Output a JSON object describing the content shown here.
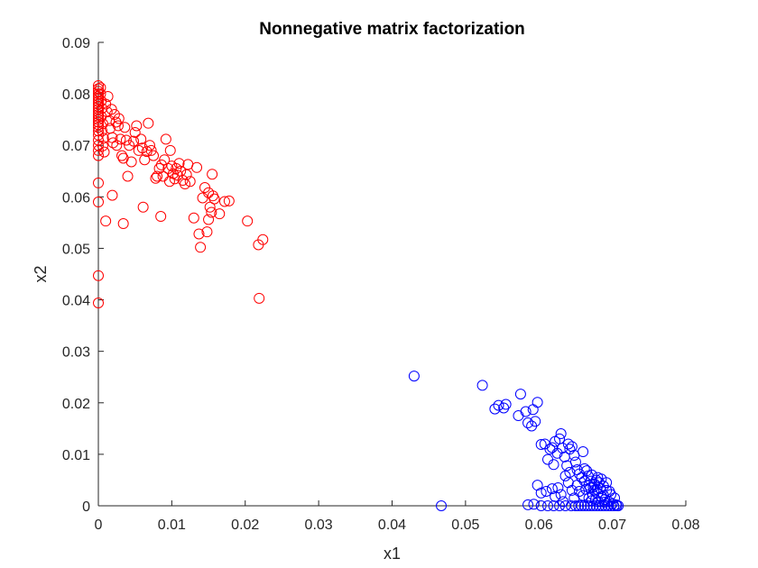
{
  "chart_data": {
    "type": "scatter",
    "title": "Nonnegative matrix factorization",
    "xlabel": "x1",
    "ylabel": "x2",
    "xlim": [
      0,
      0.08
    ],
    "ylim": [
      0,
      0.09
    ],
    "xticks": [
      "0",
      "0.01",
      "0.02",
      "0.03",
      "0.04",
      "0.05",
      "0.06",
      "0.07",
      "0.08"
    ],
    "yticks": [
      "0",
      "0.01",
      "0.02",
      "0.03",
      "0.04",
      "0.05",
      "0.06",
      "0.07",
      "0.08",
      "0.09"
    ],
    "grid": false,
    "legend": "none",
    "series": [
      {
        "color": "#ff0000",
        "marker": "open-circle",
        "points": [
          [
            0.0,
            0.0816
          ],
          [
            0.0,
            0.081
          ],
          [
            0.0,
            0.0805
          ],
          [
            0.0,
            0.08
          ],
          [
            0.0,
            0.0795
          ],
          [
            0.0,
            0.079
          ],
          [
            0.0,
            0.0785
          ],
          [
            0.0,
            0.078
          ],
          [
            0.0,
            0.0775
          ],
          [
            0.0,
            0.077
          ],
          [
            0.0,
            0.0765
          ],
          [
            0.0,
            0.076
          ],
          [
            0.0,
            0.0755
          ],
          [
            0.0,
            0.075
          ],
          [
            0.0,
            0.0745
          ],
          [
            0.0,
            0.074
          ],
          [
            0.0,
            0.0735
          ],
          [
            0.0,
            0.0728
          ],
          [
            0.0,
            0.072
          ],
          [
            0.0,
            0.071
          ],
          [
            0.0,
            0.07
          ],
          [
            0.0,
            0.069
          ],
          [
            0.0,
            0.068
          ],
          [
            0.0,
            0.0627
          ],
          [
            0.0,
            0.059
          ],
          [
            0.0,
            0.0447
          ],
          [
            0.0,
            0.0394
          ],
          [
            0.0003,
            0.0812
          ],
          [
            0.0003,
            0.08
          ],
          [
            0.0004,
            0.0786
          ],
          [
            0.0005,
            0.0772
          ],
          [
            0.0004,
            0.0756
          ],
          [
            0.0006,
            0.0742
          ],
          [
            0.0005,
            0.0728
          ],
          [
            0.0007,
            0.0714
          ],
          [
            0.0006,
            0.0699
          ],
          [
            0.0008,
            0.0687
          ],
          [
            0.001,
            0.078
          ],
          [
            0.0012,
            0.0765
          ],
          [
            0.0013,
            0.0795
          ],
          [
            0.0015,
            0.0748
          ],
          [
            0.0016,
            0.0733
          ],
          [
            0.0018,
            0.077
          ],
          [
            0.0019,
            0.0715
          ],
          [
            0.002,
            0.0705
          ],
          [
            0.0022,
            0.076
          ],
          [
            0.0024,
            0.0745
          ],
          [
            0.0025,
            0.07
          ],
          [
            0.0027,
            0.0738
          ],
          [
            0.0028,
            0.0752
          ],
          [
            0.003,
            0.0712
          ],
          [
            0.0032,
            0.068
          ],
          [
            0.0034,
            0.0675
          ],
          [
            0.0036,
            0.0735
          ],
          [
            0.0038,
            0.071
          ],
          [
            0.004,
            0.064
          ],
          [
            0.0042,
            0.07
          ],
          [
            0.0045,
            0.0668
          ],
          [
            0.0048,
            0.0708
          ],
          [
            0.005,
            0.0725
          ],
          [
            0.0052,
            0.0738
          ],
          [
            0.0055,
            0.069
          ],
          [
            0.0058,
            0.0712
          ],
          [
            0.006,
            0.0695
          ],
          [
            0.0063,
            0.0672
          ],
          [
            0.0066,
            0.0688
          ],
          [
            0.0068,
            0.0743
          ],
          [
            0.007,
            0.07
          ],
          [
            0.0072,
            0.069
          ],
          [
            0.0075,
            0.068
          ],
          [
            0.0078,
            0.0636
          ],
          [
            0.008,
            0.064
          ],
          [
            0.0083,
            0.0655
          ],
          [
            0.0086,
            0.0662
          ],
          [
            0.0088,
            0.064
          ],
          [
            0.009,
            0.0672
          ],
          [
            0.0092,
            0.0712
          ],
          [
            0.0095,
            0.0655
          ],
          [
            0.0097,
            0.063
          ],
          [
            0.0098,
            0.069
          ],
          [
            0.01,
            0.066
          ],
          [
            0.0102,
            0.0645
          ],
          [
            0.0104,
            0.0635
          ],
          [
            0.0106,
            0.0655
          ],
          [
            0.0108,
            0.0642
          ],
          [
            0.011,
            0.0665
          ],
          [
            0.0112,
            0.065
          ],
          [
            0.0115,
            0.0632
          ],
          [
            0.0118,
            0.0625
          ],
          [
            0.012,
            0.0643
          ],
          [
            0.0122,
            0.0663
          ],
          [
            0.0125,
            0.063
          ],
          [
            0.013,
            0.0559
          ],
          [
            0.0134,
            0.0657
          ],
          [
            0.0137,
            0.0528
          ],
          [
            0.0139,
            0.0502
          ],
          [
            0.0142,
            0.0598
          ],
          [
            0.0145,
            0.0618
          ],
          [
            0.0148,
            0.0532
          ],
          [
            0.015,
            0.0608
          ],
          [
            0.015,
            0.0556
          ],
          [
            0.0152,
            0.058
          ],
          [
            0.0154,
            0.057
          ],
          [
            0.0155,
            0.0644
          ],
          [
            0.0156,
            0.0602
          ],
          [
            0.0158,
            0.0596
          ],
          [
            0.0165,
            0.0567
          ],
          [
            0.0172,
            0.0591
          ],
          [
            0.0178,
            0.0592
          ],
          [
            0.0203,
            0.0553
          ],
          [
            0.0218,
            0.0507
          ],
          [
            0.0224,
            0.0517
          ],
          [
            0.0219,
            0.0403
          ],
          [
            0.001,
            0.0553
          ],
          [
            0.0034,
            0.0548
          ],
          [
            0.0061,
            0.058
          ],
          [
            0.0085,
            0.0562
          ],
          [
            0.0019,
            0.0603
          ]
        ]
      },
      {
        "color": "#0000ff",
        "marker": "open-circle",
        "points": [
          [
            0.043,
            0.0252
          ],
          [
            0.0467,
            0.0
          ],
          [
            0.0523,
            0.0234
          ],
          [
            0.054,
            0.0188
          ],
          [
            0.0545,
            0.0195
          ],
          [
            0.0552,
            0.019
          ],
          [
            0.0555,
            0.0197
          ],
          [
            0.0572,
            0.0175
          ],
          [
            0.0575,
            0.0217
          ],
          [
            0.0582,
            0.0183
          ],
          [
            0.0585,
            0.0161
          ],
          [
            0.059,
            0.0155
          ],
          [
            0.0592,
            0.0187
          ],
          [
            0.0595,
            0.0164
          ],
          [
            0.0598,
            0.0201
          ],
          [
            0.0603,
            0.0119
          ],
          [
            0.0608,
            0.012
          ],
          [
            0.0612,
            0.009
          ],
          [
            0.0615,
            0.011
          ],
          [
            0.0618,
            0.0113
          ],
          [
            0.062,
            0.008
          ],
          [
            0.0622,
            0.0125
          ],
          [
            0.0625,
            0.0102
          ],
          [
            0.0628,
            0.013
          ],
          [
            0.063,
            0.014
          ],
          [
            0.0632,
            0.0112
          ],
          [
            0.0635,
            0.0095
          ],
          [
            0.0638,
            0.0078
          ],
          [
            0.064,
            0.012
          ],
          [
            0.0642,
            0.011
          ],
          [
            0.0645,
            0.0115
          ],
          [
            0.0648,
            0.0098
          ],
          [
            0.065,
            0.0085
          ],
          [
            0.0652,
            0.007
          ],
          [
            0.0655,
            0.0062
          ],
          [
            0.0658,
            0.0055
          ],
          [
            0.066,
            0.0105
          ],
          [
            0.0662,
            0.0048
          ],
          [
            0.0665,
            0.0068
          ],
          [
            0.0668,
            0.004
          ],
          [
            0.067,
            0.0035
          ],
          [
            0.0672,
            0.006
          ],
          [
            0.0675,
            0.003
          ],
          [
            0.0678,
            0.005
          ],
          [
            0.068,
            0.0025
          ],
          [
            0.0682,
            0.0045
          ],
          [
            0.0685,
            0.0018
          ],
          [
            0.0688,
            0.0038
          ],
          [
            0.069,
            0.0012
          ],
          [
            0.0692,
            0.003
          ],
          [
            0.0695,
            0.0008
          ],
          [
            0.0698,
            0.0022
          ],
          [
            0.07,
            0.0004
          ],
          [
            0.0703,
            0.0015
          ],
          [
            0.0705,
            0.0002
          ],
          [
            0.0708,
            0.0
          ],
          [
            0.0706,
            0.0
          ],
          [
            0.0702,
            0.0
          ],
          [
            0.0698,
            0.0
          ],
          [
            0.0694,
            0.0
          ],
          [
            0.069,
            0.0
          ],
          [
            0.0686,
            0.0
          ],
          [
            0.0682,
            0.0
          ],
          [
            0.0678,
            0.0
          ],
          [
            0.0674,
            0.0
          ],
          [
            0.067,
            0.0
          ],
          [
            0.0666,
            0.0
          ],
          [
            0.0662,
            0.0
          ],
          [
            0.0658,
            0.0
          ],
          [
            0.0654,
            0.0
          ],
          [
            0.065,
            0.0
          ],
          [
            0.0644,
            0.0
          ],
          [
            0.0636,
            0.0
          ],
          [
            0.0628,
            0.0
          ],
          [
            0.062,
            0.0
          ],
          [
            0.0612,
            0.0
          ],
          [
            0.0603,
            0.0
          ],
          [
            0.0585,
            0.0002
          ],
          [
            0.0593,
            0.0003
          ],
          [
            0.066,
            0.002
          ],
          [
            0.0664,
            0.0032
          ],
          [
            0.0668,
            0.0015
          ],
          [
            0.0672,
            0.001
          ],
          [
            0.0676,
            0.0042
          ],
          [
            0.068,
            0.0055
          ],
          [
            0.0684,
            0.0033
          ],
          [
            0.0688,
            0.002
          ],
          [
            0.0692,
            0.0045
          ],
          [
            0.0696,
            0.0028
          ],
          [
            0.0673,
            0.0022
          ],
          [
            0.0677,
            0.0012
          ],
          [
            0.0681,
            0.0008
          ],
          [
            0.0685,
            0.0052
          ],
          [
            0.0689,
            0.0007
          ],
          [
            0.0655,
            0.0028
          ],
          [
            0.0652,
            0.004
          ],
          [
            0.0648,
            0.0015
          ],
          [
            0.0645,
            0.003
          ],
          [
            0.064,
            0.0045
          ],
          [
            0.0636,
            0.0058
          ],
          [
            0.063,
            0.0022
          ],
          [
            0.0626,
            0.0035
          ],
          [
            0.0618,
            0.0033
          ],
          [
            0.0603,
            0.0025
          ],
          [
            0.0598,
            0.004
          ],
          [
            0.061,
            0.0028
          ],
          [
            0.0622,
            0.0018
          ],
          [
            0.0633,
            0.0008
          ],
          [
            0.0642,
            0.0065
          ],
          [
            0.0662,
            0.0072
          ],
          [
            0.0667,
            0.0058
          ],
          [
            0.0671,
            0.0048
          ],
          [
            0.0674,
            0.0036
          ],
          [
            0.0679,
            0.0032
          ]
        ]
      }
    ]
  }
}
